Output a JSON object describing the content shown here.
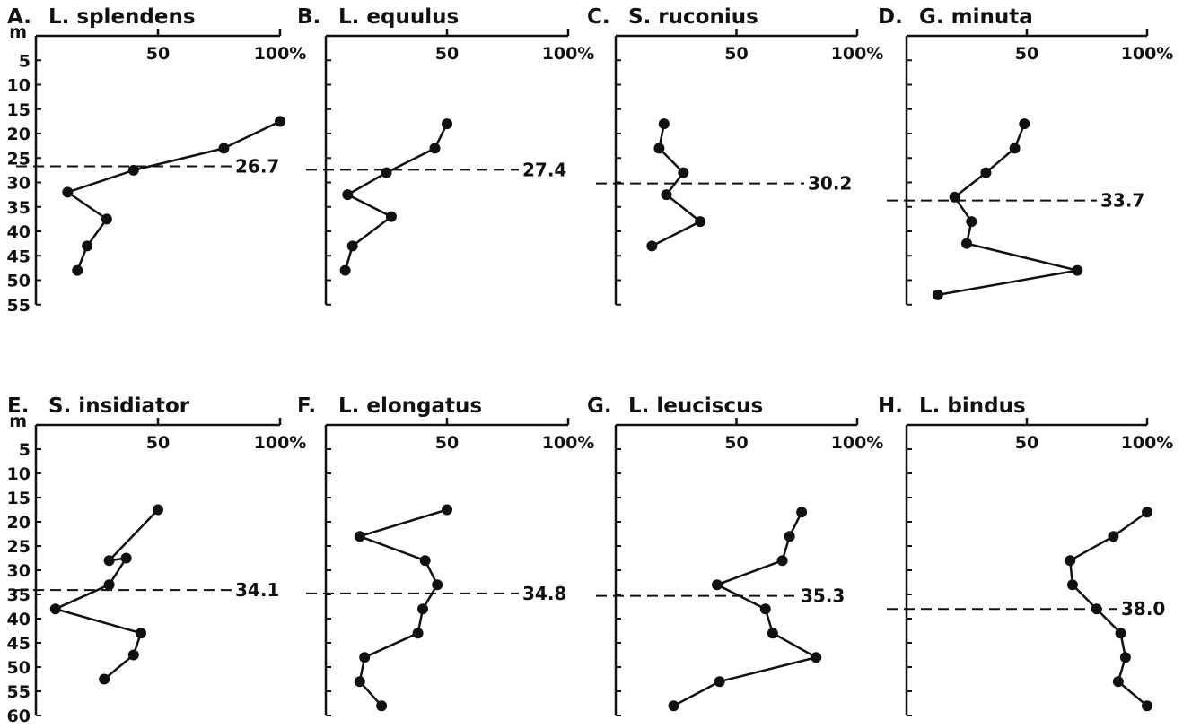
{
  "y_unit": "m",
  "chart_data": [
    {
      "type": "line",
      "letter": "A.",
      "title": "L. splendens",
      "xlim": [
        0,
        100
      ],
      "ylim": [
        0,
        55
      ],
      "x_ticks": [
        "50",
        "100%"
      ],
      "y_ticks": [
        "5",
        "10",
        "15",
        "20",
        "25",
        "30",
        "35",
        "40",
        "45",
        "50",
        "55"
      ],
      "series": [
        {
          "points": [
            [
              100,
              17.5
            ],
            [
              77,
              23
            ],
            [
              40,
              27.5
            ],
            [
              13,
              32
            ],
            [
              29,
              37.5
            ],
            [
              21,
              43
            ],
            [
              17,
              48
            ]
          ]
        }
      ],
      "mean_depth": 26.7
    },
    {
      "type": "line",
      "letter": "B.",
      "title": "L. equulus",
      "xlim": [
        0,
        100
      ],
      "ylim": [
        0,
        55
      ],
      "x_ticks": [
        "50",
        "100%"
      ],
      "y_ticks": [],
      "series": [
        {
          "points": [
            [
              50,
              18
            ],
            [
              45,
              23
            ],
            [
              25,
              28
            ],
            [
              9,
              32.5
            ],
            [
              27,
              37
            ],
            [
              11,
              43
            ],
            [
              8,
              48
            ]
          ]
        }
      ],
      "mean_depth": 27.4
    },
    {
      "type": "line",
      "letter": "C.",
      "title": "S. ruconius",
      "xlim": [
        0,
        100
      ],
      "ylim": [
        0,
        55
      ],
      "x_ticks": [
        "50",
        "100%"
      ],
      "y_ticks": [],
      "series": [
        {
          "points": [
            [
              20,
              18
            ],
            [
              18,
              23
            ],
            [
              28,
              28
            ],
            [
              21,
              32.5
            ],
            [
              35,
              38
            ],
            [
              15,
              43
            ]
          ]
        }
      ],
      "mean_depth": 30.2
    },
    {
      "type": "line",
      "letter": "D.",
      "title": "G. minuta",
      "xlim": [
        0,
        100
      ],
      "ylim": [
        0,
        55
      ],
      "x_ticks": [
        "50",
        "100%"
      ],
      "y_ticks": [],
      "series": [
        {
          "points": [
            [
              49,
              18
            ],
            [
              45,
              23
            ],
            [
              33,
              28
            ],
            [
              20,
              33
            ],
            [
              27,
              38
            ],
            [
              25,
              42.5
            ],
            [
              71,
              48
            ],
            [
              13,
              53
            ]
          ]
        }
      ],
      "mean_depth": 33.7
    },
    {
      "type": "line",
      "letter": "E.",
      "title": "S. insidiator",
      "xlim": [
        0,
        100
      ],
      "ylim": [
        0,
        60
      ],
      "x_ticks": [
        "50",
        "100%"
      ],
      "y_ticks": [
        "5",
        "10",
        "15",
        "20",
        "25",
        "30",
        "35",
        "40",
        "45",
        "50",
        "55",
        "60"
      ],
      "series": [
        {
          "points": [
            [
              50,
              17.5
            ],
            [
              30,
              28
            ],
            [
              37,
              27.5
            ],
            [
              30,
              33
            ],
            [
              8,
              38
            ],
            [
              43,
              43
            ],
            [
              40,
              47.5
            ],
            [
              28,
              52.5
            ]
          ]
        }
      ],
      "mean_depth": 34.1
    },
    {
      "type": "line",
      "letter": "F.",
      "title": "L. elongatus",
      "xlim": [
        0,
        100
      ],
      "ylim": [
        0,
        60
      ],
      "x_ticks": [
        "50",
        "100%"
      ],
      "y_ticks": [],
      "series": [
        {
          "points": [
            [
              50,
              17.5
            ],
            [
              14,
              23
            ],
            [
              41,
              28
            ],
            [
              46,
              33
            ],
            [
              40,
              38
            ],
            [
              38,
              43
            ],
            [
              16,
              48
            ],
            [
              14,
              53
            ],
            [
              23,
              58
            ]
          ]
        }
      ],
      "mean_depth": 34.8
    },
    {
      "type": "line",
      "letter": "G.",
      "title": "L. leuciscus",
      "xlim": [
        0,
        100
      ],
      "ylim": [
        0,
        60
      ],
      "x_ticks": [
        "50",
        "100%"
      ],
      "y_ticks": [],
      "series": [
        {
          "points": [
            [
              77,
              18
            ],
            [
              72,
              23
            ],
            [
              69,
              28
            ],
            [
              42,
              33
            ],
            [
              62,
              38
            ],
            [
              65,
              43
            ],
            [
              83,
              48
            ],
            [
              43,
              53
            ],
            [
              24,
              58
            ]
          ]
        }
      ],
      "mean_depth": 35.3
    },
    {
      "type": "line",
      "letter": "H.",
      "title": "L. bindus",
      "xlim": [
        0,
        100
      ],
      "ylim": [
        0,
        60
      ],
      "x_ticks": [
        "50",
        "100%"
      ],
      "y_ticks": [],
      "series": [
        {
          "points": [
            [
              100,
              18
            ],
            [
              86,
              23
            ],
            [
              68,
              28
            ],
            [
              69,
              33
            ],
            [
              79,
              38
            ],
            [
              89,
              43
            ],
            [
              91,
              48
            ],
            [
              88,
              53
            ],
            [
              100,
              58
            ]
          ]
        }
      ],
      "mean_depth": 38.0
    }
  ]
}
